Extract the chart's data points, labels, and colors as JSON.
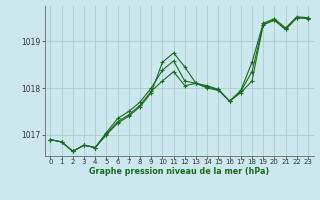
{
  "xlabel_label": "Graphe pression niveau de la mer (hPa)",
  "bg_color": "#cce8ee",
  "grid_color": "#aacccc",
  "line_color": "#1a6b1a",
  "marker_color": "#1a6b1a",
  "ylim": [
    1016.55,
    1019.75
  ],
  "xlim": [
    -0.5,
    23.5
  ],
  "yticks": [
    1017,
    1018,
    1019
  ],
  "xticks": [
    0,
    1,
    2,
    3,
    4,
    5,
    6,
    7,
    8,
    9,
    10,
    11,
    12,
    13,
    14,
    15,
    16,
    17,
    18,
    19,
    20,
    21,
    22,
    23
  ],
  "series1": [
    1016.9,
    1016.85,
    1016.65,
    1016.78,
    1016.73,
    1017.0,
    1017.25,
    1017.4,
    1017.6,
    1017.9,
    1018.55,
    1018.75,
    1018.45,
    1018.1,
    1018.05,
    1017.97,
    1017.72,
    1017.95,
    1018.55,
    1019.38,
    1019.48,
    1019.28,
    1019.52,
    1019.5
  ],
  "series2": [
    1016.9,
    1016.85,
    1016.65,
    1016.78,
    1016.73,
    1017.05,
    1017.35,
    1017.5,
    1017.7,
    1018.0,
    1018.38,
    1018.58,
    1018.15,
    1018.1,
    1018.02,
    1017.97,
    1017.72,
    1017.93,
    1018.35,
    1019.35,
    1019.45,
    1019.25,
    1019.5,
    1019.48
  ],
  "series3": [
    1016.9,
    1016.85,
    1016.65,
    1016.78,
    1016.73,
    1017.02,
    1017.28,
    1017.43,
    1017.63,
    1017.93,
    1018.15,
    1018.35,
    1018.05,
    1018.1,
    1018.0,
    1017.95,
    1017.72,
    1017.9,
    1018.15,
    1019.35,
    1019.45,
    1019.25,
    1019.5,
    1019.5
  ]
}
